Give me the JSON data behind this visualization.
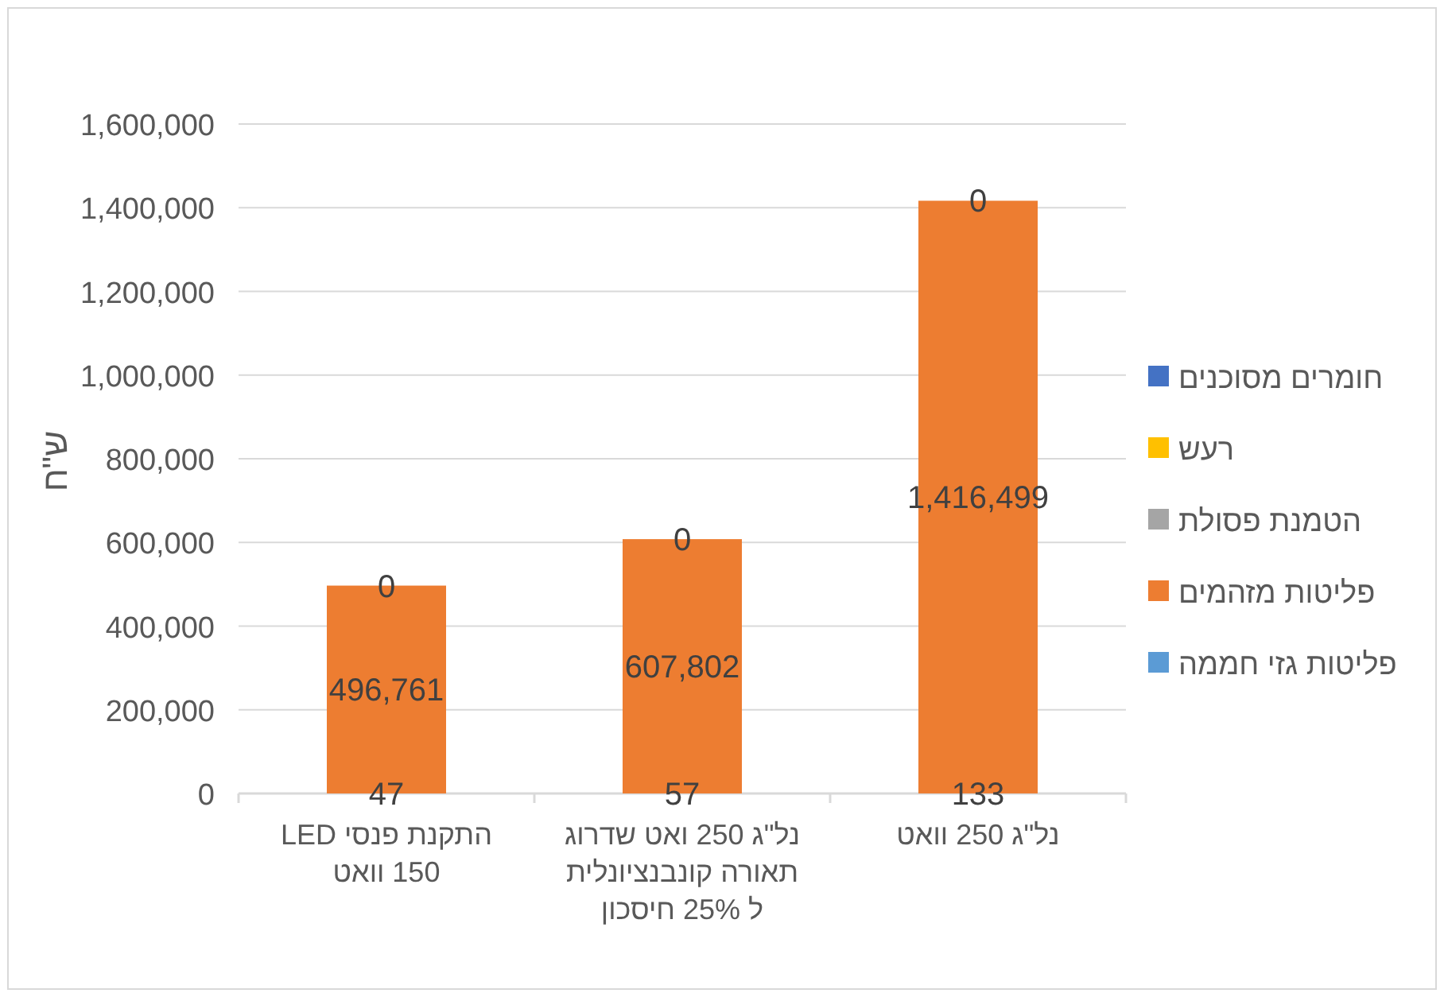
{
  "chart_data": {
    "type": "bar",
    "stacked": true,
    "ylabel": "ש\"ח",
    "categories": [
      "התקנת פנסי LED 150 וואט",
      "נל\"ג 250 ואט שדרוג תאורה קונבנציונלית ל 25% חיסכון",
      "נל\"ג 250 וואט"
    ],
    "series": [
      {
        "name": "פליטות גזי חממה",
        "color": "#5b9bd5",
        "values": [
          47,
          57,
          133
        ],
        "value_labels": [
          "47",
          "57",
          "133"
        ]
      },
      {
        "name": "פליטות מזהמים",
        "color": "#ed7d31",
        "values": [
          496761,
          607802,
          1416499
        ],
        "value_labels": [
          "496,761",
          "607,802",
          "1,416,499"
        ]
      },
      {
        "name": "הטמנת פסולת",
        "color": "#a5a5a5",
        "values": [
          0,
          0,
          0
        ],
        "value_labels": [
          "0",
          "0",
          "0"
        ]
      },
      {
        "name": "רעש",
        "color": "#ffc000",
        "values": [
          0,
          0,
          0
        ],
        "value_labels": [
          null,
          null,
          null
        ]
      },
      {
        "name": "חומרים מסוכנים",
        "color": "#4472c4",
        "values": [
          0,
          0,
          0
        ],
        "value_labels": [
          null,
          null,
          null
        ]
      }
    ],
    "ylim": [
      0,
      1600000
    ],
    "yticks": [
      {
        "value": 0,
        "label": "0"
      },
      {
        "value": 200000,
        "label": "200,000"
      },
      {
        "value": 400000,
        "label": "400,000"
      },
      {
        "value": 600000,
        "label": "600,000"
      },
      {
        "value": 800000,
        "label": "800,000"
      },
      {
        "value": 1000000,
        "label": "1,000,000"
      },
      {
        "value": 1200000,
        "label": "1,200,000"
      },
      {
        "value": 1400000,
        "label": "1,400,000"
      },
      {
        "value": 1600000,
        "label": "1,600,000"
      }
    ],
    "grid": "y",
    "legend": "right"
  }
}
